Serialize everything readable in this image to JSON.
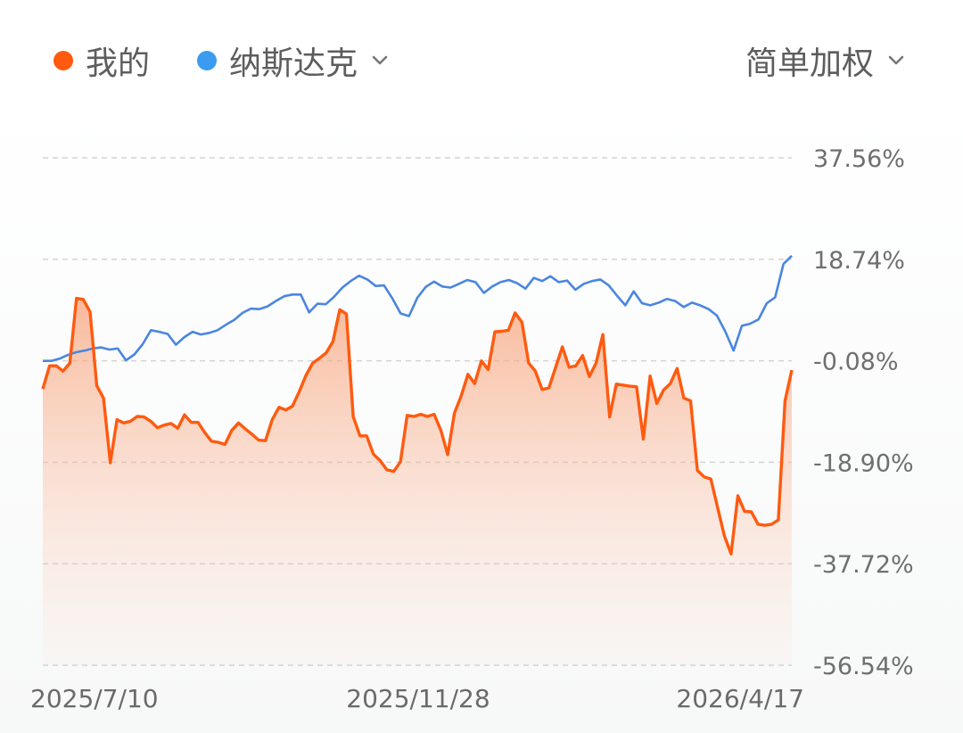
{
  "legend": {
    "mine_label": "我的",
    "index_label": "纳斯达克",
    "weighting_label": "简单加权"
  },
  "colors": {
    "mine": "#ff5a0f",
    "index": "#4a86e0",
    "index_dot": "#3b9bf0",
    "grid": "#d3d3d3"
  },
  "icons": {
    "dropdown": "chevron-down-icon"
  },
  "chart_data": {
    "type": "line",
    "x_tick_labels": [
      "2025/7/10",
      "2025/11/28",
      "2026/4/17"
    ],
    "y_tick_labels": [
      "37.56%",
      "18.74%",
      "-0.08%",
      "-18.90%",
      "-37.72%",
      "-56.54%"
    ],
    "ylim": [
      -56.54,
      37.56
    ],
    "y_unit": "%",
    "x_start": "2025/7/10",
    "x_end": "2026/4/22",
    "grid": true,
    "area_fill_series": "我的",
    "series": [
      {
        "name": "我的",
        "values": [
          -5.3,
          -1.0,
          -1.0,
          -2.0,
          -0.5,
          11.5,
          11.3,
          9.0,
          -4.7,
          -7.0,
          -19.0,
          -11.0,
          -11.6,
          -11.3,
          -10.4,
          -10.5,
          -11.3,
          -12.5,
          -12.0,
          -11.7,
          -12.6,
          -10.1,
          -11.5,
          -11.5,
          -13.4,
          -15.0,
          -15.2,
          -15.6,
          -13.0,
          -11.6,
          -12.7,
          -13.7,
          -14.8,
          -14.9,
          -11.0,
          -8.7,
          -9.2,
          -8.5,
          -5.8,
          -2.8,
          -0.5,
          0.4,
          1.4,
          3.5,
          9.4,
          8.6,
          -10.4,
          -14.0,
          -14.0,
          -17.4,
          -18.6,
          -20.3,
          -20.6,
          -18.8,
          -10.2,
          -10.4,
          -10.0,
          -10.4,
          -10.0,
          -13.0,
          -17.5,
          -9.8,
          -6.6,
          -2.6,
          -4.3,
          -0.1,
          -1.7,
          5.3,
          5.4,
          5.6,
          8.8,
          7.1,
          -0.5,
          -2.0,
          -5.4,
          -5.1,
          -1.3,
          2.5,
          -1.3,
          -1.0,
          0.9,
          -3.0,
          -0.5,
          4.8,
          -10.5,
          -4.4,
          -4.6,
          -4.8,
          -4.9,
          -14.6,
          -2.9,
          -8.0,
          -5.5,
          -4.3,
          -1.5,
          -7.0,
          -7.5,
          -20.4,
          -21.6,
          -22.0,
          -27.3,
          -32.5,
          -35.9,
          -25.1,
          -28.0,
          -28.1,
          -30.4,
          -30.6,
          -30.4,
          -29.6,
          -7.5,
          -1.8
        ]
      },
      {
        "name": "纳斯达克",
        "values": [
          -0.1,
          -0.1,
          0.3,
          1.0,
          1.5,
          1.8,
          2.2,
          2.4,
          2.0,
          2.2,
          -0.0,
          1.1,
          3.0,
          5.6,
          5.3,
          4.9,
          2.9,
          4.3,
          5.3,
          4.8,
          5.1,
          5.6,
          6.6,
          7.5,
          8.8,
          9.6,
          9.5,
          10.0,
          11.0,
          11.9,
          12.2,
          12.2,
          8.9,
          10.5,
          10.4,
          11.8,
          13.5,
          14.7,
          15.7,
          15.0,
          13.8,
          13.9,
          11.5,
          8.7,
          8.2,
          11.6,
          13.6,
          14.6,
          13.7,
          13.5,
          14.2,
          14.9,
          14.5,
          12.5,
          13.7,
          14.5,
          14.9,
          14.3,
          13.3,
          15.3,
          14.7,
          15.6,
          14.5,
          14.8,
          13.1,
          14.2,
          14.7,
          15.0,
          13.9,
          12.0,
          10.2,
          12.8,
          10.6,
          10.2,
          10.7,
          11.4,
          11.0,
          9.9,
          10.7,
          10.2,
          9.5,
          8.3,
          5.4,
          1.8,
          6.4,
          6.8,
          7.6,
          10.6,
          11.7,
          17.9,
          19.4
        ]
      }
    ]
  }
}
